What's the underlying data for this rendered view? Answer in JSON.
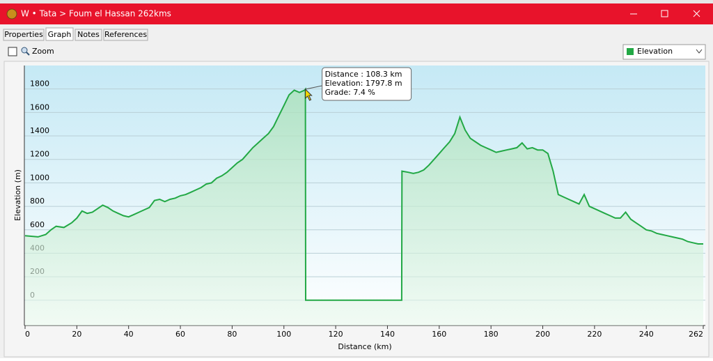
{
  "window": {
    "title": "W • Tata > Foum el Hassan 262kms"
  },
  "tabs": [
    "Properties",
    "Graph",
    "Notes",
    "References"
  ],
  "zoom_label": "Zoom",
  "dropdown": "Elevation",
  "chart_data": {
    "type": "line",
    "xlabel": "Distance  (km)",
    "ylabel": "Elevation (m)",
    "x": [
      0,
      5,
      8,
      10,
      12,
      15,
      18,
      20,
      22,
      24,
      26,
      28,
      30,
      32,
      34,
      36,
      38,
      40,
      42,
      44,
      46,
      48,
      50,
      52,
      54,
      56,
      58,
      60,
      62,
      64,
      66,
      68,
      70,
      72,
      74,
      76,
      78,
      80,
      82,
      84,
      86,
      88,
      90,
      92,
      94,
      96,
      98,
      100,
      102,
      104,
      106,
      108,
      108.3,
      108.4,
      145.5,
      145.6,
      148,
      150,
      152,
      154,
      156,
      158,
      160,
      162,
      164,
      166,
      168,
      170,
      172,
      174,
      176,
      178,
      180,
      182,
      184,
      186,
      188,
      190,
      192,
      194,
      196,
      198,
      200,
      202,
      204,
      206,
      208,
      210,
      212,
      214,
      216,
      218,
      220,
      222,
      224,
      226,
      228,
      230,
      232,
      234,
      236,
      238,
      240,
      242,
      244,
      246,
      248,
      250,
      252,
      254,
      256,
      258,
      260,
      262
    ],
    "series": [
      {
        "name": "Elevation",
        "color": "#22a845",
        "values": [
          550,
          540,
          560,
          600,
          630,
          620,
          660,
          700,
          760,
          740,
          750,
          780,
          810,
          790,
          760,
          740,
          720,
          710,
          730,
          750,
          770,
          790,
          850,
          860,
          840,
          860,
          870,
          890,
          900,
          920,
          940,
          960,
          990,
          1000,
          1040,
          1060,
          1090,
          1130,
          1170,
          1200,
          1250,
          1300,
          1340,
          1380,
          1420,
          1480,
          1570,
          1660,
          1750,
          1790,
          1770,
          1790,
          1797.8,
          0,
          0,
          1100,
          1090,
          1080,
          1090,
          1110,
          1150,
          1200,
          1250,
          1300,
          1350,
          1420,
          1560,
          1450,
          1380,
          1350,
          1320,
          1300,
          1280,
          1260,
          1270,
          1280,
          1290,
          1300,
          1340,
          1290,
          1300,
          1280,
          1280,
          1250,
          1100,
          900,
          880,
          860,
          840,
          820,
          900,
          800,
          780,
          760,
          740,
          720,
          700,
          700,
          750,
          690,
          660,
          630,
          600,
          590,
          570,
          560,
          550,
          540,
          530,
          520,
          500,
          490,
          480,
          480
        ]
      }
    ],
    "xlim": [
      0,
      262
    ],
    "ylim": [
      -215,
      2000
    ],
    "xticks": [
      0,
      20,
      40,
      60,
      80,
      100,
      120,
      140,
      160,
      180,
      200,
      220,
      240,
      262
    ],
    "yticks": [
      0,
      200,
      400,
      600,
      800,
      1000,
      1200,
      1400,
      1600,
      1800
    ],
    "grid": true,
    "tooltip": {
      "x": 108.3,
      "y": 1797.8,
      "lines": [
        "Distance : 108.3 km",
        "Elevation: 1797.8 m",
        "Grade: 7.4 %"
      ]
    }
  }
}
